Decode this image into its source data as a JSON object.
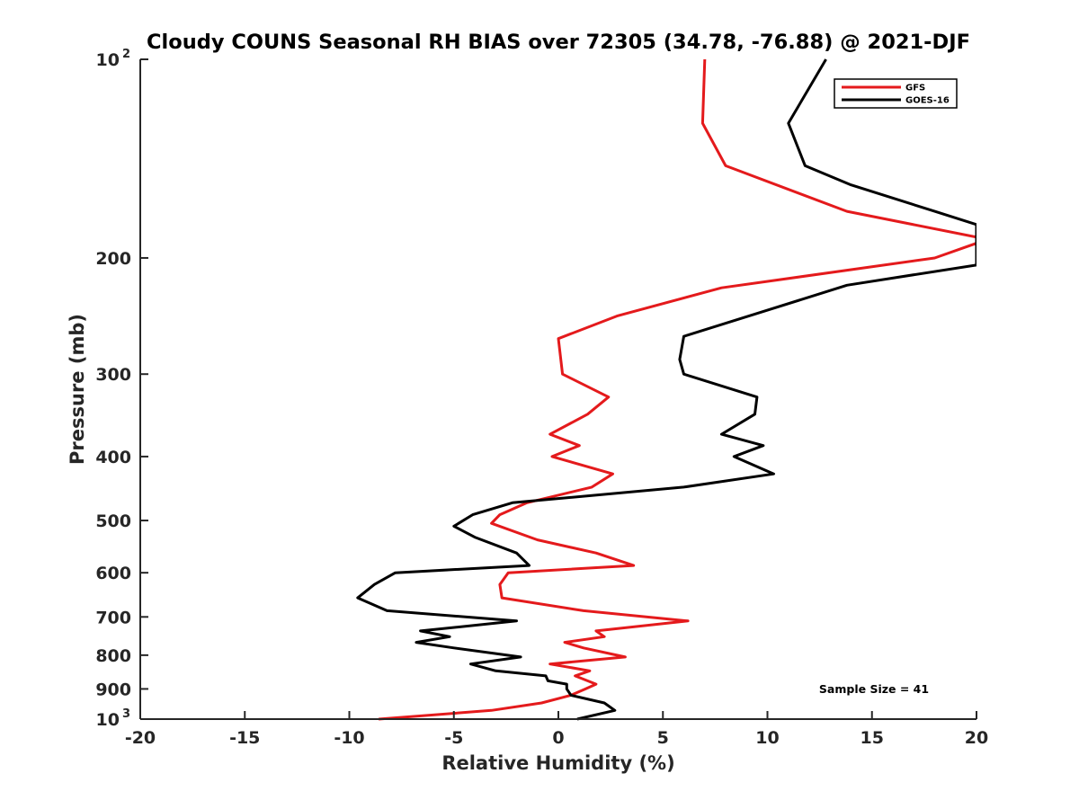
{
  "chart_data": {
    "type": "line",
    "title": "Cloudy COUNS Seasonal RH BIAS over 72305 (34.78, -76.88) @ 2021-DJF",
    "xlabel": "Relative Humidity (%)",
    "ylabel": "Pressure (mb)",
    "xlim": [
      -20,
      20
    ],
    "ylim": [
      100,
      1000
    ],
    "y_scale": "log",
    "y_reversed": true,
    "grid": false,
    "legend_position": "top-right",
    "x_ticks": [
      -20,
      -15,
      -10,
      -5,
      0,
      5,
      10,
      15,
      20
    ],
    "x_tick_labels": [
      "-20",
      "-15",
      "-10",
      "-5",
      "0",
      "5",
      "10",
      "15",
      "20"
    ],
    "y_ticks": [
      {
        "value": 100,
        "base": "10",
        "exp": "2"
      },
      {
        "value": 200,
        "base": "200",
        "exp": ""
      },
      {
        "value": 300,
        "base": "300",
        "exp": ""
      },
      {
        "value": 400,
        "base": "400",
        "exp": ""
      },
      {
        "value": 500,
        "base": "500",
        "exp": ""
      },
      {
        "value": 600,
        "base": "600",
        "exp": ""
      },
      {
        "value": 700,
        "base": "700",
        "exp": ""
      },
      {
        "value": 800,
        "base": "800",
        "exp": ""
      },
      {
        "value": 900,
        "base": "900",
        "exp": ""
      },
      {
        "value": 1000,
        "base": "10",
        "exp": "3"
      }
    ],
    "annotation": "Sample Size = 41",
    "series": [
      {
        "name": "GFS",
        "color": "#e41a1c",
        "points": [
          [
            7.0,
            100
          ],
          [
            6.9,
            125
          ],
          [
            8.0,
            145
          ],
          [
            13.8,
            170
          ],
          [
            20.0,
            186
          ],
          [
            20.0,
            190
          ],
          [
            18.0,
            200
          ],
          [
            7.8,
            222
          ],
          [
            2.8,
            245
          ],
          [
            0.0,
            265
          ],
          [
            0.2,
            300
          ],
          [
            2.4,
            325
          ],
          [
            1.4,
            345
          ],
          [
            -0.4,
            370
          ],
          [
            1.0,
            385
          ],
          [
            -0.3,
            400
          ],
          [
            2.6,
            425
          ],
          [
            1.6,
            445
          ],
          [
            -1.5,
            470
          ],
          [
            -2.8,
            490
          ],
          [
            -3.2,
            505
          ],
          [
            -1.0,
            535
          ],
          [
            1.8,
            560
          ],
          [
            3.6,
            585
          ],
          [
            -2.4,
            600
          ],
          [
            -2.8,
            625
          ],
          [
            -2.7,
            655
          ],
          [
            1.2,
            685
          ],
          [
            6.2,
            710
          ],
          [
            1.8,
            735
          ],
          [
            2.2,
            750
          ],
          [
            0.3,
            765
          ],
          [
            1.2,
            780
          ],
          [
            3.2,
            805
          ],
          [
            -0.4,
            825
          ],
          [
            1.5,
            845
          ],
          [
            0.8,
            860
          ],
          [
            1.8,
            885
          ],
          [
            1.3,
            900
          ],
          [
            0.6,
            920
          ],
          [
            -0.8,
            945
          ],
          [
            -3.2,
            970
          ],
          [
            -8.6,
            1000
          ]
        ]
      },
      {
        "name": "GOES-16",
        "color": "#000000",
        "points": [
          [
            12.8,
            100
          ],
          [
            11.0,
            125
          ],
          [
            11.8,
            145
          ],
          [
            14.0,
            155
          ],
          [
            18.0,
            170
          ],
          [
            20.0,
            178
          ],
          [
            20.0,
            205
          ],
          [
            13.8,
            220
          ],
          [
            10.0,
            240
          ],
          [
            6.0,
            263
          ],
          [
            5.8,
            285
          ],
          [
            6.0,
            300
          ],
          [
            9.5,
            325
          ],
          [
            9.4,
            345
          ],
          [
            7.8,
            370
          ],
          [
            9.8,
            385
          ],
          [
            8.4,
            400
          ],
          [
            10.3,
            425
          ],
          [
            6.0,
            445
          ],
          [
            -2.2,
            470
          ],
          [
            -4.1,
            490
          ],
          [
            -5.0,
            510
          ],
          [
            -4.0,
            530
          ],
          [
            -2.0,
            560
          ],
          [
            -1.4,
            585
          ],
          [
            -7.8,
            600
          ],
          [
            -8.8,
            625
          ],
          [
            -9.6,
            655
          ],
          [
            -8.2,
            685
          ],
          [
            -2.0,
            710
          ],
          [
            -6.6,
            735
          ],
          [
            -5.2,
            750
          ],
          [
            -6.8,
            765
          ],
          [
            -5.0,
            780
          ],
          [
            -1.8,
            805
          ],
          [
            -4.2,
            825
          ],
          [
            -3.0,
            845
          ],
          [
            -0.6,
            860
          ],
          [
            -0.5,
            875
          ],
          [
            0.4,
            885
          ],
          [
            0.4,
            900
          ],
          [
            0.6,
            920
          ],
          [
            2.2,
            945
          ],
          [
            2.7,
            970
          ],
          [
            0.9,
            1000
          ]
        ]
      }
    ]
  }
}
